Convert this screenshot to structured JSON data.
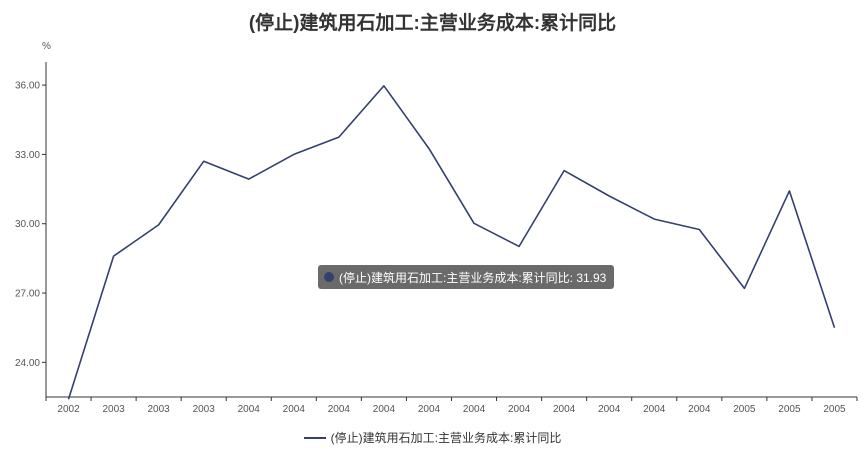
{
  "chart_data": {
    "type": "line",
    "title": "(停止)建筑用石加工:主营业务成本:累计同比",
    "ylabel": "%",
    "ylim": [
      22.5,
      37.0
    ],
    "yticks": [
      "24.00",
      "27.00",
      "30.00",
      "33.00",
      "36.00"
    ],
    "categories": [
      "2002",
      "2003",
      "2003",
      "2003",
      "2004",
      "2004",
      "2004",
      "2004",
      "2004",
      "2004",
      "2004",
      "2004",
      "2004",
      "2004",
      "2004",
      "2005",
      "2005",
      "2005"
    ],
    "series": [
      {
        "name": "(停止)建筑用石加工:主营业务成本:累计同比",
        "color": "#34406e",
        "values": [
          22.4,
          28.6,
          29.95,
          32.7,
          31.93,
          33.0,
          33.75,
          35.97,
          33.25,
          30.02,
          29.02,
          32.3,
          31.2,
          30.2,
          29.75,
          27.2,
          31.42,
          25.5
        ]
      }
    ],
    "legend_position": "bottom",
    "grid": false
  },
  "tooltip": {
    "text": "(停止)建筑用石加工:主营业务成本:累计同比: 31.93",
    "color": "#34406e"
  }
}
